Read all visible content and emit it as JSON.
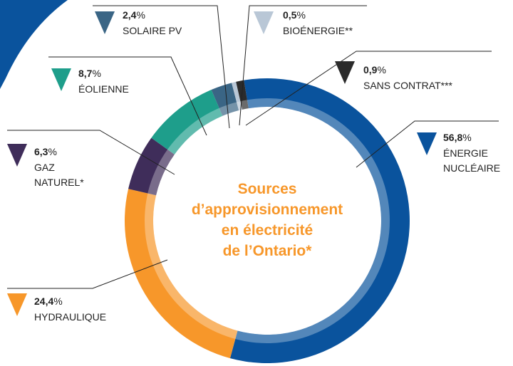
{
  "chart_data": {
    "type": "donut",
    "title": [
      "Sources",
      "d’approvisionnement",
      "en électricité",
      "de l’Ontario*"
    ],
    "categories": [
      "ÉNERGIE NUCLÉAIRE",
      "HYDRAULIQUE",
      "GAZ NATUREL*",
      "ÉOLIENNE",
      "SOLAIRE PV",
      "BIOÉNERGIE**",
      "SANS CONTRAT***"
    ],
    "values": [
      56.8,
      24.4,
      6.3,
      8.7,
      2.4,
      0.5,
      0.9
    ],
    "value_labels": [
      "56,8%",
      "24,4%",
      "6,3%",
      "8,7%",
      "2,4%",
      "0,5%",
      "0,9%"
    ],
    "colors": [
      "#0a539d",
      "#f7972a",
      "#3f2d5a",
      "#1e9e8b",
      "#3a6585",
      "#b9c7d6",
      "#2b2b2b"
    ]
  }
}
